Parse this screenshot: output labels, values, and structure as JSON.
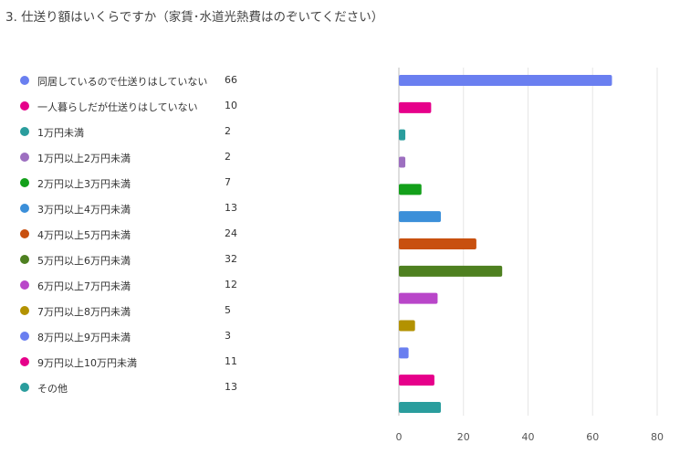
{
  "title": "3. 仕送り額はいくらですか（家賃･水道光熱費はのぞいてください）",
  "chart_data": {
    "type": "bar",
    "orientation": "horizontal",
    "categories": [
      "同居しているので仕送りはしていない",
      "一人暮らしだが仕送りはしていない",
      "1万円未満",
      "1万円以上2万円未満",
      "2万円以上3万円未満",
      "3万円以上4万円未満",
      "4万円以上5万円未満",
      "5万円以上6万円未満",
      "6万円以上7万円未満",
      "7万円以上8万円未満",
      "8万円以上9万円未満",
      "9万円以上10万円未満",
      "その他"
    ],
    "values": [
      66,
      10,
      2,
      2,
      7,
      13,
      24,
      32,
      12,
      5,
      3,
      11,
      13
    ],
    "colors": [
      "#6a7ff0",
      "#e6008a",
      "#2a9d9d",
      "#9d6fc0",
      "#13a01a",
      "#3b8fd9",
      "#c8500f",
      "#4e8020",
      "#b946c9",
      "#b39200",
      "#6a7ff0",
      "#e6008a",
      "#2a9d9d"
    ],
    "xlim": [
      0,
      80
    ],
    "xticks": [
      "0",
      "20",
      "40",
      "60",
      "80"
    ],
    "grid": true,
    "legend": "left",
    "xlabel": "",
    "ylabel": ""
  }
}
